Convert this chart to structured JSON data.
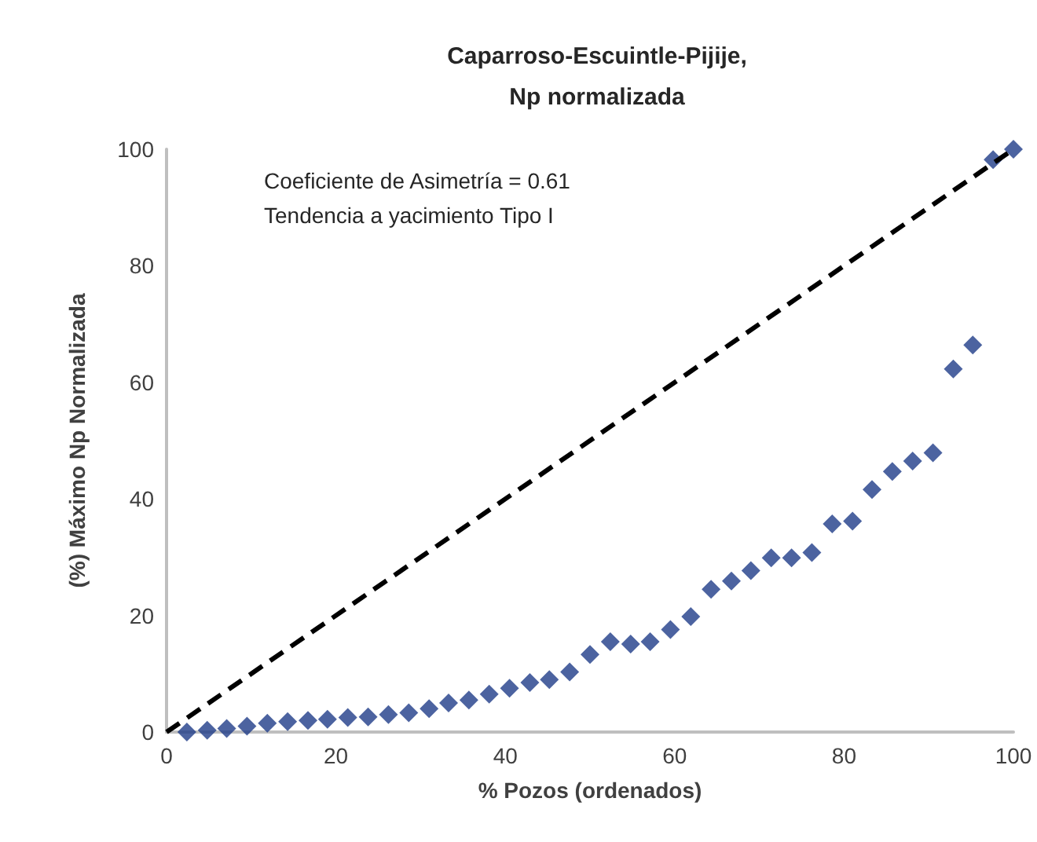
{
  "chart_data": {
    "type": "scatter",
    "title": "Caparroso-Escuintle-Pijije,\nNp normalizada",
    "xlabel": "% Pozos (ordenados)",
    "ylabel": "(%) Máximo Np Normalizada",
    "annotations": [
      "Coeficiente de Asimetría = 0.61\nTendencia a yacimiento Tipo I"
    ],
    "xlim": [
      0,
      100
    ],
    "ylim": [
      0,
      100
    ],
    "xticks": [
      0,
      20,
      40,
      60,
      80,
      100
    ],
    "yticks": [
      0,
      20,
      40,
      60,
      80,
      100
    ],
    "grid": false,
    "series": [
      {
        "marker": "diamond",
        "color": "#1f3c88",
        "x": [
          2.4,
          4.8,
          7.1,
          9.5,
          11.9,
          14.3,
          16.7,
          19.0,
          21.4,
          23.8,
          26.2,
          28.6,
          31.0,
          33.3,
          35.7,
          38.1,
          40.5,
          42.9,
          45.2,
          47.6,
          50.0,
          52.4,
          54.8,
          57.1,
          59.5,
          61.9,
          64.3,
          66.7,
          69.0,
          71.4,
          73.8,
          76.2,
          78.6,
          81.0,
          83.3,
          85.7,
          88.1,
          90.5,
          92.9,
          95.2,
          97.6,
          100
        ],
        "values": [
          0,
          0.3,
          0.6,
          1,
          1.5,
          1.8,
          2,
          2.2,
          2.5,
          2.6,
          3,
          3.3,
          4,
          5,
          5.5,
          6.5,
          7.5,
          8.5,
          9,
          10.3,
          13.3,
          15.5,
          15.1,
          15.5,
          17.6,
          19.8,
          24.5,
          25.9,
          27.7,
          29.9,
          29.9,
          30.8,
          35.7,
          36.2,
          41.6,
          44.7,
          46.5,
          47.9,
          62.3,
          66.4,
          98.2,
          100
        ]
      },
      {
        "type": "line",
        "line_style": "dashed",
        "marker": "none",
        "color": "#000000",
        "x": [
          0,
          100
        ],
        "values": [
          0,
          100
        ]
      }
    ]
  }
}
